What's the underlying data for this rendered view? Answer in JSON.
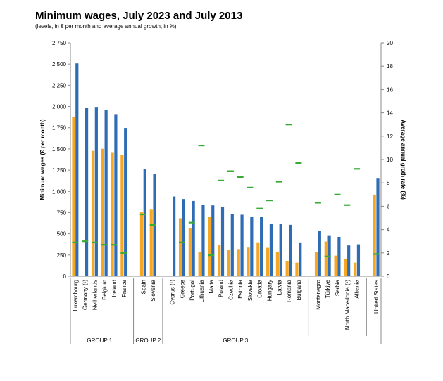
{
  "title": "Minimum wages, July 2023 and July 2013",
  "subtitle": "(levels, in € per month and average annual growth, in %)",
  "colors": {
    "wage_2023": "#2e6db4",
    "wage_2013": "#f5a623",
    "growth": "#3aaa35"
  },
  "chart_data": {
    "type": "bar",
    "ylabel": "Minimum wages (€ per month)",
    "y2label": "Average annual groth rate (%)",
    "ylim": [
      0,
      2750
    ],
    "y2lim": [
      0,
      20
    ],
    "yticks": [
      "0",
      "250",
      "500",
      "750",
      "1 000",
      "1 250",
      "1 500",
      "1 750",
      "2 000",
      "2 250",
      "2 500",
      "2 750"
    ],
    "y2ticks": [
      "0",
      "2",
      "4",
      "6",
      "8",
      "10",
      "12",
      "14",
      "16",
      "18",
      "20"
    ],
    "grid": false,
    "categories": [
      "Luxembourg",
      "Germany (¹)",
      "Netherlands",
      "Belgium",
      "Ireland",
      "France",
      "",
      "Spain",
      "Slovenia",
      "",
      "Cyprus (¹)",
      "Greece",
      "Portugal",
      "Lithuania",
      "Malta",
      "Poland",
      "Czechia",
      "Estonia",
      "Slovakia",
      "Croatia",
      "Hungary",
      "Latvia",
      "Romania",
      "Bulgaria",
      "",
      "Montenegro",
      "Türkiye",
      "Serbia",
      "North Macedonia (¹)",
      "Albania",
      "",
      "United States"
    ],
    "series": [
      {
        "key": "wage_2023",
        "values": [
          2508,
          1987,
          1995,
          1955,
          1910,
          1747,
          null,
          1260,
          1203,
          null,
          940,
          910,
          887,
          840,
          835,
          812,
          730,
          725,
          700,
          700,
          620,
          620,
          606,
          399,
          null,
          532,
          475,
          464,
          363,
          376,
          null,
          1158
        ]
      },
      {
        "key": "wage_2013",
        "values": [
          1874,
          null,
          1477,
          1502,
          1462,
          1430,
          null,
          753,
          784,
          null,
          null,
          684,
          566,
          290,
          697,
          370,
          310,
          320,
          338,
          400,
          335,
          287,
          180,
          160,
          null,
          288,
          410,
          243,
          200,
          160,
          null,
          962
        ]
      },
      {
        "key": "growth",
        "axis": "y2",
        "values": [
          2.9,
          3.0,
          2.9,
          2.7,
          2.7,
          2.0,
          null,
          5.3,
          4.4,
          null,
          null,
          2.9,
          4.6,
          11.2,
          1.8,
          8.2,
          9.0,
          8.5,
          7.6,
          5.8,
          6.5,
          8.1,
          13.0,
          9.7,
          null,
          6.3,
          1.7,
          7.0,
          6.1,
          9.2,
          null,
          1.9
        ]
      }
    ],
    "groups": [
      {
        "label": "GROUP 1",
        "from": 0,
        "to": 5
      },
      {
        "label": "GROUP 2",
        "from": 7,
        "to": 8
      },
      {
        "label": "GROUP 3",
        "from": 10,
        "to": 23
      },
      {
        "label": "",
        "from": 25,
        "to": 29
      },
      {
        "label": "",
        "from": 31,
        "to": 31
      }
    ]
  }
}
